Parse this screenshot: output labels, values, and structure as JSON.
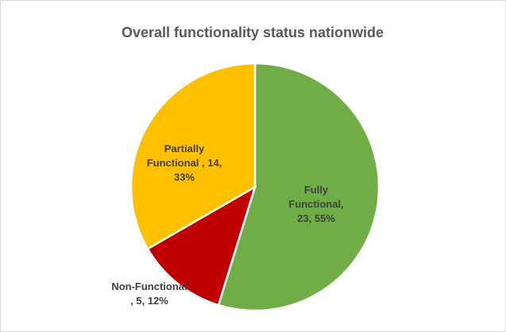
{
  "chart_data": {
    "type": "pie",
    "title": "Overall functionality status nationwide",
    "values": [
      23,
      5,
      14
    ],
    "value_labels": [
      "Fully Functional, 23, 55%",
      "Non-Functional , 5, 12%",
      "Partially Functional , 14, 33%"
    ],
    "colors": [
      "#70ad47",
      "#c00000",
      "#ffc000"
    ]
  }
}
